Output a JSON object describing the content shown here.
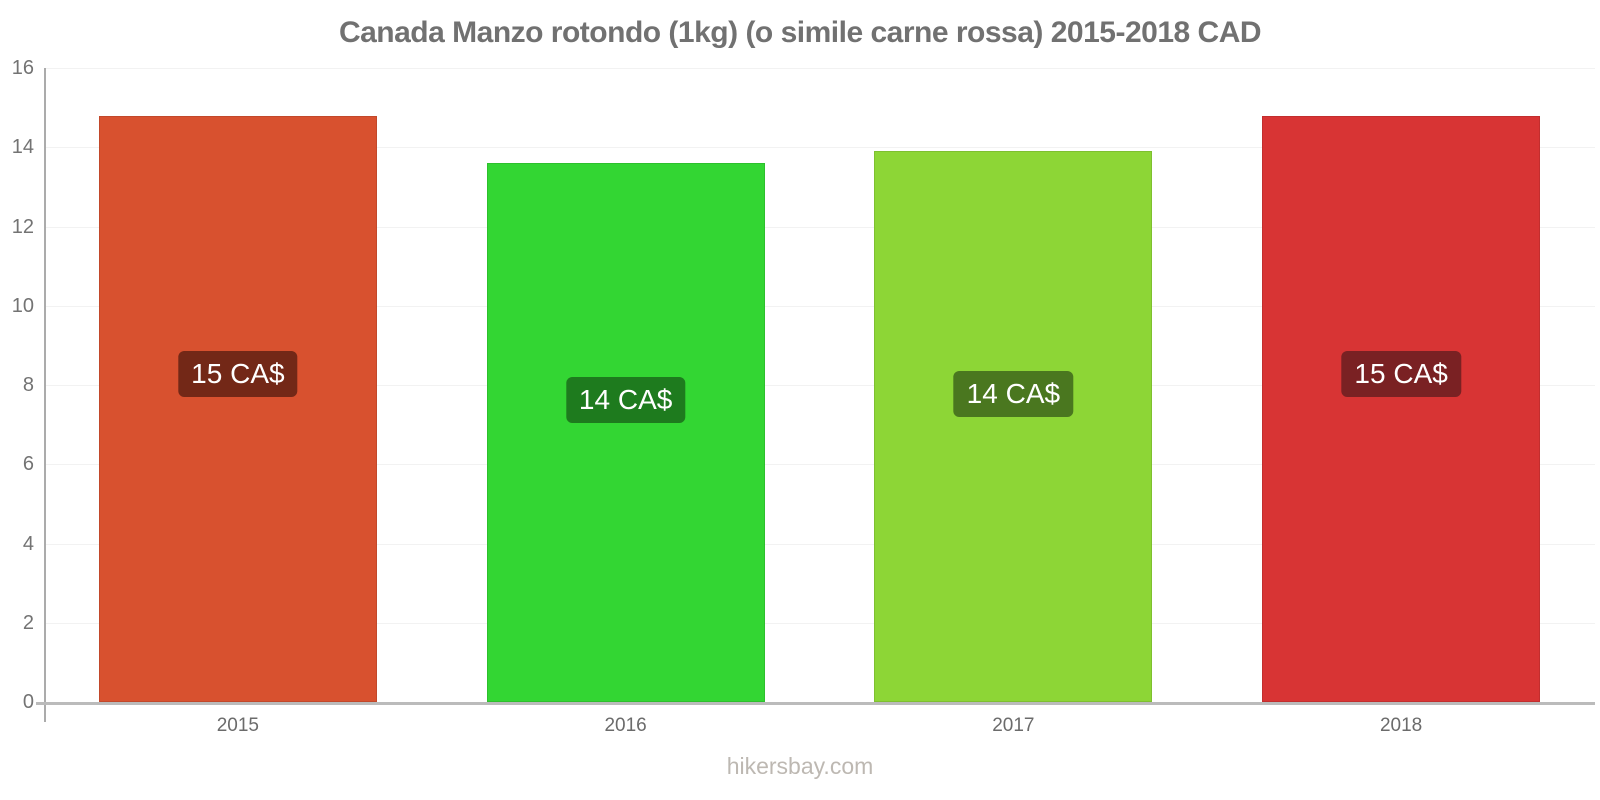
{
  "page": {
    "title": "Canada Manzo rotondo (1kg) (o simile carne rossa) 2015-2018 CAD",
    "footer": "hikersbay.com"
  },
  "chart_data": {
    "type": "bar",
    "title": "Canada Manzo rotondo (1kg) (o simile carne rossa) 2015-2018 CAD",
    "categories": [
      "2015",
      "2016",
      "2017",
      "2018"
    ],
    "values": [
      14.8,
      13.6,
      13.9,
      14.8
    ],
    "bar_labels": [
      "15 CA$",
      "14 CA$",
      "14 CA$",
      "15 CA$"
    ],
    "bar_colors": [
      "#D8512F",
      "#33D633",
      "#8DD636",
      "#D83434"
    ],
    "bar_label_bg": [
      "#732817",
      "#1E7B1E",
      "#4A771F",
      "#7A2123"
    ],
    "xlabel": "",
    "ylabel": "",
    "ylim": [
      0,
      16
    ],
    "yticks": [
      0,
      2,
      4,
      6,
      8,
      10,
      12,
      14,
      16
    ],
    "grid": true,
    "legend": false
  },
  "colors": {
    "background": "#FFFFFF",
    "title_text": "#717171",
    "axis_line": "#ABABAB",
    "baseline": "#BBBBBB",
    "gridline": "#F2F2F2",
    "y_tick_text": "#737373",
    "x_tick_text": "#6B6B6B",
    "value_text": "#FFFFFF",
    "footer_text": "#BDB8B2"
  }
}
